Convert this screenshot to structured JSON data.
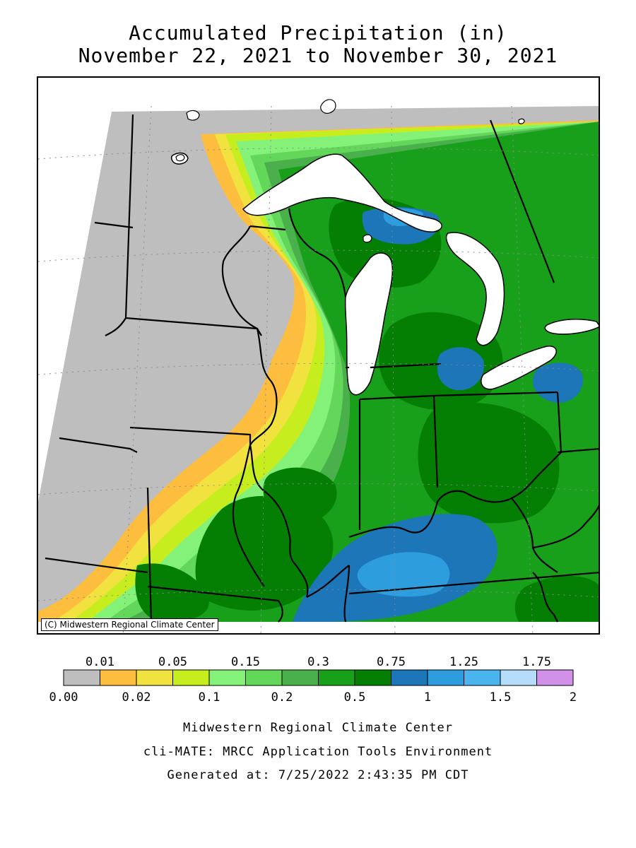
{
  "title": {
    "line1": "Accumulated Precipitation (in)",
    "line2": "November 22, 2021 to November 30, 2021"
  },
  "copyright": "(C) Midwestern Regional Climate Center",
  "legend": {
    "colors": [
      "#bebebe",
      "#fdbd3f",
      "#f1e23f",
      "#c6ee1e",
      "#84f279",
      "#62d75a",
      "#4ab04c",
      "#18a01a",
      "#047f04",
      "#1c76b8",
      "#2e9dde",
      "#4ab4ee",
      "#b5dcfa",
      "#d291e9"
    ],
    "top_labels": [
      "0.01",
      "0.05",
      "0.15",
      "0.3",
      "0.75",
      "1.25",
      "1.75"
    ],
    "bottom_labels": [
      "0.00",
      "0.02",
      "0.1",
      "0.2",
      "0.5",
      "1",
      "1.5",
      "2"
    ]
  },
  "footer": {
    "line1": "Midwestern Regional Climate Center",
    "line2": "cli-MATE: MRCC Application Tools Environment",
    "line3": "Generated at: 7/25/2022 2:43:35 PM CDT"
  }
}
